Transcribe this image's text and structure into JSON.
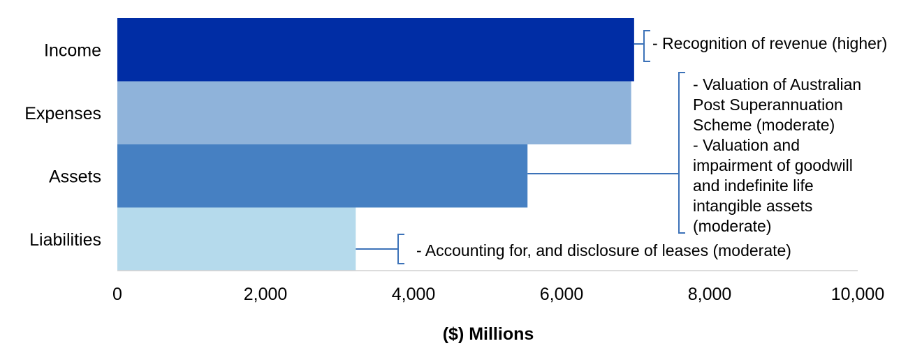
{
  "chart_data": {
    "type": "bar",
    "orientation": "horizontal",
    "categories": [
      "Income",
      "Expenses",
      "Assets",
      "Liabilities"
    ],
    "values": [
      6980,
      6940,
      5540,
      3220
    ],
    "colors": [
      "#002DA5",
      "#8FB3DA",
      "#4680C2",
      "#B5DAEC"
    ],
    "xlabel": "($) Millions",
    "ylabel": "",
    "title": "",
    "xlim": [
      0,
      10000
    ],
    "xticks": [
      0,
      2000,
      4000,
      6000,
      8000,
      10000
    ],
    "xtick_labels": [
      "0",
      "2,000",
      "4,000",
      "6,000",
      "8,000",
      "10,000"
    ],
    "grid": false,
    "legend": "none",
    "annotation_color": "#3C72B8",
    "annotations": [
      {
        "category": "Income",
        "lines": [
          "- Recognition of revenue (higher)"
        ]
      },
      {
        "category": "Assets",
        "lines": [
          "- Valuation of Australian",
          "Post Superannuation",
          "Scheme (moderate)",
          "- Valuation and",
          "impairment of goodwill",
          "and indefinite life",
          "intangible assets",
          "(moderate)"
        ]
      },
      {
        "category": "Liabilities",
        "lines": [
          "- Accounting for, and disclosure of leases (moderate)"
        ]
      }
    ]
  }
}
